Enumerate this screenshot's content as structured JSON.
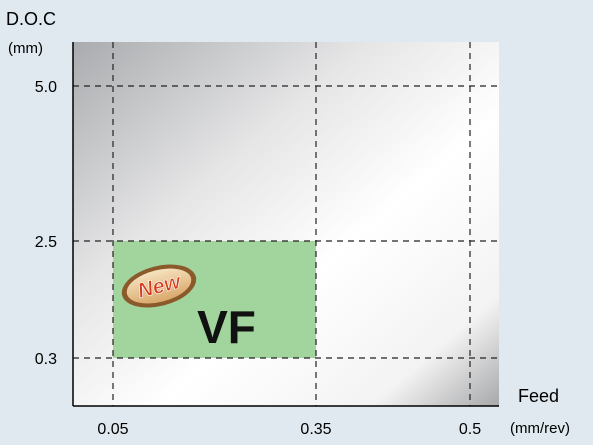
{
  "chart_data": {
    "type": "area",
    "ylabel": "D.O.C",
    "ylabel_unit": "(mm)",
    "xlabel": "Feed",
    "xlabel_unit": "(mm/rev)",
    "x_ticks": [
      {
        "value": 0.05,
        "label": "0.05"
      },
      {
        "value": 0.35,
        "label": "0.35"
      },
      {
        "value": 0.5,
        "label": "0.5"
      }
    ],
    "y_ticks": [
      {
        "value": 0.3,
        "label": "0.3"
      },
      {
        "value": 2.5,
        "label": "2.5"
      },
      {
        "value": 5.0,
        "label": "5.0"
      }
    ],
    "grid": "dashed",
    "region": {
      "label": "VF",
      "badge": "New",
      "x_range": [
        0.05,
        0.35
      ],
      "y_range": [
        0.3,
        2.5
      ],
      "color": "#a2d49d"
    },
    "colors": {
      "background": "#dfe9ef",
      "badge_outer": "#8a5a2a",
      "badge_inner": "#e8c79a",
      "badge_text": "#d63a1a"
    }
  }
}
